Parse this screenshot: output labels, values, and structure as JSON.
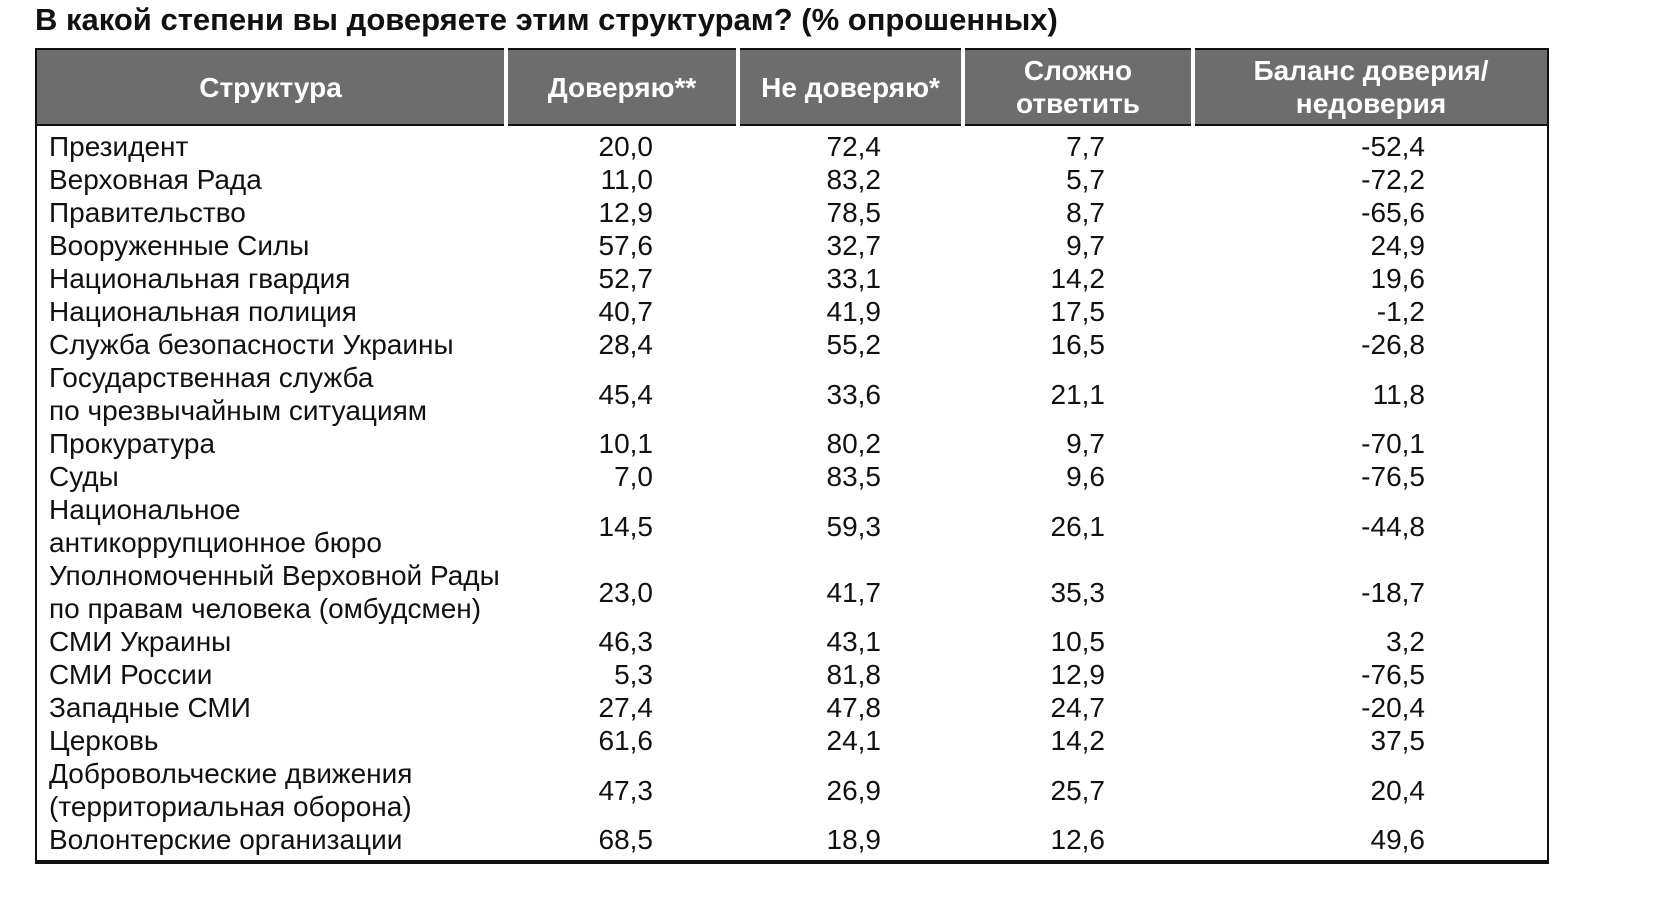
{
  "page": {
    "title": "В какой степени вы доверяете этим структурам? (% опрошенных)"
  },
  "colors": {
    "header_bg": "#6d6d6d",
    "header_text": "#ffffff",
    "body_text": "#111111",
    "border": "#111111"
  },
  "table": {
    "headers": {
      "structure": "Структура",
      "trust": "Доверяю**",
      "distrust": "Не доверяю*",
      "hard_to_answer": "Сложно\nответить",
      "balance": "Баланс доверия/\nнедоверия"
    },
    "rows": [
      {
        "name": "Президент",
        "trust": "20,0",
        "distrust": "72,4",
        "hard": "7,7",
        "balance": "-52,4"
      },
      {
        "name": "Верховная Рада",
        "trust": "11,0",
        "distrust": "83,2",
        "hard": "5,7",
        "balance": "-72,2"
      },
      {
        "name": "Правительство",
        "trust": "12,9",
        "distrust": "78,5",
        "hard": "8,7",
        "balance": "-65,6"
      },
      {
        "name": "Вооруженные Силы",
        "trust": "57,6",
        "distrust": "32,7",
        "hard": "9,7",
        "balance": "24,9"
      },
      {
        "name": "Национальная гвардия",
        "trust": "52,7",
        "distrust": "33,1",
        "hard": "14,2",
        "balance": "19,6"
      },
      {
        "name": "Национальная полиция",
        "trust": "40,7",
        "distrust": "41,9",
        "hard": "17,5",
        "balance": "-1,2"
      },
      {
        "name": "Служба безопасности Украины",
        "trust": "28,4",
        "distrust": "55,2",
        "hard": "16,5",
        "balance": "-26,8"
      },
      {
        "name": "Государственная служба\nпо чрезвычайным ситуациям",
        "trust": "45,4",
        "distrust": "33,6",
        "hard": "21,1",
        "balance": "11,8"
      },
      {
        "name": "Прокуратура",
        "trust": "10,1",
        "distrust": "80,2",
        "hard": "9,7",
        "balance": "-70,1"
      },
      {
        "name": "Суды",
        "trust": "7,0",
        "distrust": "83,5",
        "hard": "9,6",
        "balance": "-76,5"
      },
      {
        "name": "Национальное\nантикоррупционное бюро",
        "trust": "14,5",
        "distrust": "59,3",
        "hard": "26,1",
        "balance": "-44,8"
      },
      {
        "name": "Уполномоченный Верховной Рады\nпо правам человека (омбудсмен)",
        "trust": "23,0",
        "distrust": "41,7",
        "hard": "35,3",
        "balance": "-18,7"
      },
      {
        "name": "СМИ Украины",
        "trust": "46,3",
        "distrust": "43,1",
        "hard": "10,5",
        "balance": "3,2"
      },
      {
        "name": "СМИ России",
        "trust": "5,3",
        "distrust": "81,8",
        "hard": "12,9",
        "balance": "-76,5"
      },
      {
        "name": "Западные СМИ",
        "trust": "27,4",
        "distrust": "47,8",
        "hard": "24,7",
        "balance": "-20,4"
      },
      {
        "name": "Церковь",
        "trust": "61,6",
        "distrust": "24,1",
        "hard": "14,2",
        "balance": "37,5"
      },
      {
        "name": "Добровольческие движения\n(территориальная оборона)",
        "trust": "47,3",
        "distrust": "26,9",
        "hard": "25,7",
        "balance": "20,4"
      },
      {
        "name": "Волонтерские организации",
        "trust": "68,5",
        "distrust": "18,9",
        "hard": "12,6",
        "balance": "49,6"
      }
    ]
  }
}
